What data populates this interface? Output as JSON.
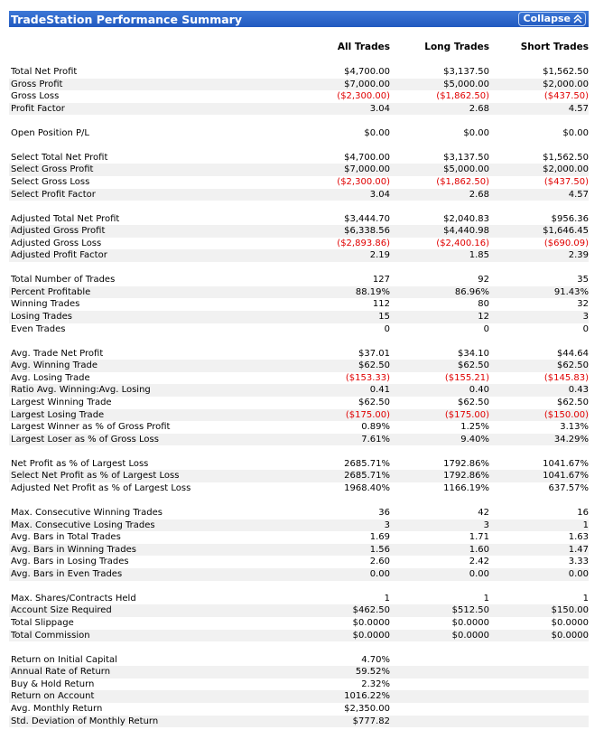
{
  "header": {
    "title": "TradeStation Performance Summary",
    "button": "Collapse"
  },
  "table": {
    "columns": [
      "All Trades",
      "Long Trades",
      "Short Trades"
    ],
    "groups": [
      [
        [
          "Total Net Profit",
          "$4,700.00",
          "$3,137.50",
          "$1,562.50"
        ],
        [
          "Gross Profit",
          "$7,000.00",
          "$5,000.00",
          "$2,000.00"
        ],
        [
          "Gross Loss",
          "($2,300.00)",
          "($1,862.50)",
          "($437.50)"
        ],
        [
          "Profit Factor",
          "3.04",
          "2.68",
          "4.57"
        ]
      ],
      [
        [
          "Open Position P/L",
          "$0.00",
          "$0.00",
          "$0.00"
        ]
      ],
      [
        [
          "Select Total Net Profit",
          "$4,700.00",
          "$3,137.50",
          "$1,562.50"
        ],
        [
          "Select Gross Profit",
          "$7,000.00",
          "$5,000.00",
          "$2,000.00"
        ],
        [
          "Select Gross Loss",
          "($2,300.00)",
          "($1,862.50)",
          "($437.50)"
        ],
        [
          "Select Profit Factor",
          "3.04",
          "2.68",
          "4.57"
        ]
      ],
      [
        [
          "Adjusted Total Net Profit",
          "$3,444.70",
          "$2,040.83",
          "$956.36"
        ],
        [
          "Adjusted Gross Profit",
          "$6,338.56",
          "$4,440.98",
          "$1,646.45"
        ],
        [
          "Adjusted Gross Loss",
          "($2,893.86)",
          "($2,400.16)",
          "($690.09)"
        ],
        [
          "Adjusted Profit Factor",
          "2.19",
          "1.85",
          "2.39"
        ]
      ],
      [
        [
          "Total Number of Trades",
          "127",
          "92",
          "35"
        ],
        [
          "Percent Profitable",
          "88.19%",
          "86.96%",
          "91.43%"
        ],
        [
          "Winning Trades",
          "112",
          "80",
          "32"
        ],
        [
          "Losing Trades",
          "15",
          "12",
          "3"
        ],
        [
          "Even Trades",
          "0",
          "0",
          "0"
        ]
      ],
      [
        [
          "Avg. Trade Net Profit",
          "$37.01",
          "$34.10",
          "$44.64"
        ],
        [
          "Avg. Winning Trade",
          "$62.50",
          "$62.50",
          "$62.50"
        ],
        [
          "Avg. Losing Trade",
          "($153.33)",
          "($155.21)",
          "($145.83)"
        ],
        [
          "Ratio Avg. Winning:Avg. Losing",
          "0.41",
          "0.40",
          "0.43"
        ],
        [
          "Largest Winning Trade",
          "$62.50",
          "$62.50",
          "$62.50"
        ],
        [
          "Largest Losing Trade",
          "($175.00)",
          "($175.00)",
          "($150.00)"
        ],
        [
          "Largest Winner as % of Gross Profit",
          "0.89%",
          "1.25%",
          "3.13%"
        ],
        [
          "Largest Loser as % of Gross Loss",
          "7.61%",
          "9.40%",
          "34.29%"
        ]
      ],
      [
        [
          "Net Profit as % of Largest Loss",
          "2685.71%",
          "1792.86%",
          "1041.67%"
        ],
        [
          "Select Net Profit as % of Largest Loss",
          "2685.71%",
          "1792.86%",
          "1041.67%"
        ],
        [
          "Adjusted Net Profit as % of Largest Loss",
          "1968.40%",
          "1166.19%",
          "637.57%"
        ]
      ],
      [
        [
          "Max. Consecutive Winning Trades",
          "36",
          "42",
          "16"
        ],
        [
          "Max. Consecutive Losing Trades",
          "3",
          "3",
          "1"
        ],
        [
          "Avg. Bars in Total Trades",
          "1.69",
          "1.71",
          "1.63"
        ],
        [
          "Avg. Bars in Winning Trades",
          "1.56",
          "1.60",
          "1.47"
        ],
        [
          "Avg. Bars in Losing Trades",
          "2.60",
          "2.42",
          "3.33"
        ],
        [
          "Avg. Bars in Even Trades",
          "0.00",
          "0.00",
          "0.00"
        ]
      ],
      [
        [
          "Max. Shares/Contracts Held",
          "1",
          "1",
          "1"
        ],
        [
          "Account Size Required",
          "$462.50",
          "$512.50",
          "$150.00"
        ],
        [
          "Total Slippage",
          "$0.0000",
          "$0.0000",
          "$0.0000"
        ],
        [
          "Total Commission",
          "$0.0000",
          "$0.0000",
          "$0.0000"
        ]
      ],
      [
        [
          "Return on Initial Capital",
          "4.70%"
        ],
        [
          "Annual Rate of Return",
          "59.52%"
        ],
        [
          "Buy & Hold Return",
          "2.32%"
        ],
        [
          "Return on Account",
          "1016.22%"
        ],
        [
          "Avg. Monthly Return",
          "$2,350.00"
        ],
        [
          "Std. Deviation of Monthly Return",
          "$777.82"
        ]
      ]
    ]
  }
}
